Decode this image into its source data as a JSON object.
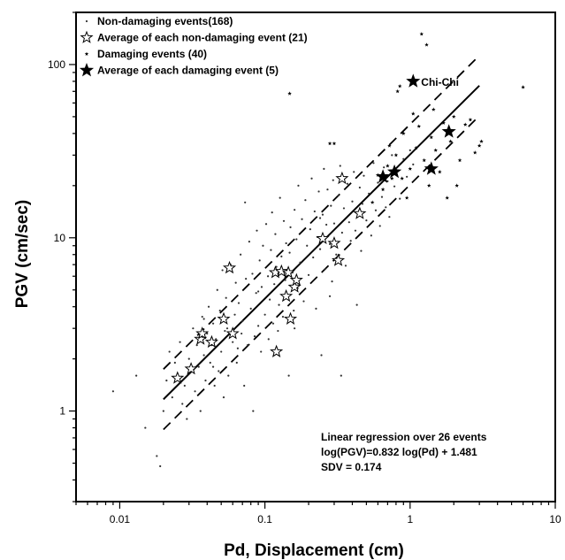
{
  "chart_data": {
    "type": "scatter",
    "xscale": "log",
    "yscale": "log",
    "xlim": [
      0.005,
      10
    ],
    "ylim": [
      0.3,
      200
    ],
    "xlabel": "Pd, Displacement (cm)",
    "ylabel": "PGV (cm/sec)",
    "x_ticks": [
      {
        "value": 0.01,
        "label": "0.01"
      },
      {
        "value": 0.1,
        "label": "0.1"
      },
      {
        "value": 1,
        "label": "1"
      },
      {
        "value": 10,
        "label": "10"
      }
    ],
    "y_ticks": [
      {
        "value": 1,
        "label": "1"
      },
      {
        "value": 10,
        "label": "10"
      },
      {
        "value": 100,
        "label": "100"
      }
    ],
    "grid": false,
    "legend_position": "top-left",
    "legend": [
      {
        "marker": "dot",
        "label": "Non-damaging events(168)"
      },
      {
        "marker": "open-star",
        "label": "Average of each non-damaging event (21)"
      },
      {
        "marker": "small-star",
        "label": "Damaging events (40)"
      },
      {
        "marker": "filled-star",
        "label": "Average of each damaging event (5)"
      }
    ],
    "regression": {
      "slope": 0.832,
      "intercept": 1.481,
      "sdv": 0.174,
      "x_range": [
        0.02,
        3
      ],
      "band_multiplier": 1
    },
    "annotation_lines": [
      "Linear regression over 26 events",
      "log(PGV)=0.832 log(Pd) + 1.481",
      "SDV = 0.174"
    ],
    "point_label": {
      "text": "Chi-Chi",
      "x": 1.05,
      "y": 80
    },
    "series": [
      {
        "name": "Non-damaging events(168)",
        "marker": "dot",
        "points": [
          [
            0.009,
            1.3
          ],
          [
            0.013,
            1.6
          ],
          [
            0.015,
            0.8
          ],
          [
            0.018,
            0.55
          ],
          [
            0.019,
            0.48
          ],
          [
            0.02,
            1.0
          ],
          [
            0.021,
            1.5
          ],
          [
            0.022,
            2.2
          ],
          [
            0.023,
            1.2
          ],
          [
            0.024,
            1.9
          ],
          [
            0.025,
            1.6
          ],
          [
            0.026,
            2.5
          ],
          [
            0.027,
            1.1
          ],
          [
            0.028,
            1.4
          ],
          [
            0.029,
            0.9
          ],
          [
            0.03,
            2.0
          ],
          [
            0.031,
            1.7
          ],
          [
            0.032,
            3.0
          ],
          [
            0.033,
            1.3
          ],
          [
            0.034,
            2.4
          ],
          [
            0.035,
            1.8
          ],
          [
            0.036,
            1.0
          ],
          [
            0.037,
            3.5
          ],
          [
            0.038,
            2.1
          ],
          [
            0.039,
            1.5
          ],
          [
            0.04,
            2.8
          ],
          [
            0.041,
            4.0
          ],
          [
            0.042,
            1.9
          ],
          [
            0.043,
            2.4
          ],
          [
            0.044,
            3.2
          ],
          [
            0.045,
            1.4
          ],
          [
            0.046,
            2.6
          ],
          [
            0.047,
            5.0
          ],
          [
            0.048,
            1.7
          ],
          [
            0.049,
            3.8
          ],
          [
            0.05,
            2.2
          ],
          [
            0.051,
            6.5
          ],
          [
            0.052,
            1.2
          ],
          [
            0.053,
            2.9
          ],
          [
            0.054,
            4.5
          ],
          [
            0.055,
            3.0
          ],
          [
            0.056,
            1.6
          ],
          [
            0.058,
            7.0
          ],
          [
            0.06,
            2.5
          ],
          [
            0.062,
            3.6
          ],
          [
            0.063,
            5.5
          ],
          [
            0.064,
            1.9
          ],
          [
            0.066,
            4.2
          ],
          [
            0.068,
            8.0
          ],
          [
            0.069,
            2.8
          ],
          [
            0.07,
            3.3
          ],
          [
            0.072,
            1.4
          ],
          [
            0.073,
            16.0
          ],
          [
            0.074,
            5.8
          ],
          [
            0.076,
            2.4
          ],
          [
            0.078,
            9.5
          ],
          [
            0.08,
            3.9
          ],
          [
            0.082,
            6.2
          ],
          [
            0.083,
            1.0
          ],
          [
            0.085,
            2.7
          ],
          [
            0.087,
            4.8
          ],
          [
            0.088,
            11.0
          ],
          [
            0.09,
            3.1
          ],
          [
            0.092,
            7.4
          ],
          [
            0.094,
            2.2
          ],
          [
            0.095,
            5.2
          ],
          [
            0.097,
            9.0
          ],
          [
            0.1,
            3.6
          ],
          [
            0.102,
            12.0
          ],
          [
            0.105,
            6.0
          ],
          [
            0.106,
            2.6
          ],
          [
            0.108,
            4.4
          ],
          [
            0.11,
            8.5
          ],
          [
            0.112,
            14.0
          ],
          [
            0.114,
            3.2
          ],
          [
            0.116,
            5.4
          ],
          [
            0.118,
            10.5
          ],
          [
            0.12,
            6.8
          ],
          [
            0.123,
            2.9
          ],
          [
            0.125,
            4.1
          ],
          [
            0.127,
            17.0
          ],
          [
            0.13,
            7.8
          ],
          [
            0.133,
            3.5
          ],
          [
            0.135,
            12.5
          ],
          [
            0.138,
            5.7
          ],
          [
            0.14,
            9.3
          ],
          [
            0.143,
            4.6
          ],
          [
            0.146,
            1.6
          ],
          [
            0.148,
            8.2
          ],
          [
            0.15,
            11.5
          ],
          [
            0.155,
            6.3
          ],
          [
            0.158,
            3.8
          ],
          [
            0.16,
            14.5
          ],
          [
            0.165,
            9.8
          ],
          [
            0.168,
            5.1
          ],
          [
            0.17,
            20.0
          ],
          [
            0.175,
            7.2
          ],
          [
            0.18,
            12.8
          ],
          [
            0.185,
            4.3
          ],
          [
            0.19,
            16.5
          ],
          [
            0.195,
            9.0
          ],
          [
            0.2,
            6.1
          ],
          [
            0.205,
            11.2
          ],
          [
            0.21,
            22.0
          ],
          [
            0.215,
            7.7
          ],
          [
            0.22,
            14.2
          ],
          [
            0.225,
            3.9
          ],
          [
            0.23,
            10.1
          ],
          [
            0.235,
            18.5
          ],
          [
            0.24,
            8.6
          ],
          [
            0.245,
            2.1
          ],
          [
            0.25,
            13.6
          ],
          [
            0.255,
            25.0
          ],
          [
            0.26,
            6.6
          ],
          [
            0.265,
            11.9
          ],
          [
            0.27,
            19.0
          ],
          [
            0.28,
            9.2
          ],
          [
            0.285,
            15.3
          ],
          [
            0.29,
            5.6
          ],
          [
            0.295,
            21.5
          ],
          [
            0.3,
            12.1
          ],
          [
            0.31,
            8.0
          ],
          [
            0.32,
            17.5
          ],
          [
            0.33,
            26.0
          ],
          [
            0.335,
            1.6
          ],
          [
            0.34,
            10.7
          ],
          [
            0.35,
            14.8
          ],
          [
            0.36,
            6.9
          ],
          [
            0.37,
            20.5
          ],
          [
            0.38,
            12.3
          ],
          [
            0.39,
            9.6
          ],
          [
            0.4,
            16.2
          ],
          [
            0.41,
            24.0
          ],
          [
            0.42,
            11.0
          ],
          [
            0.43,
            4.1
          ],
          [
            0.44,
            13.9
          ],
          [
            0.45,
            19.5
          ],
          [
            0.46,
            8.4
          ],
          [
            0.47,
            15.7
          ],
          [
            0.48,
            22.8
          ],
          [
            0.5,
            12.6
          ],
          [
            0.52,
            18.0
          ],
          [
            0.54,
            10.3
          ],
          [
            0.56,
            27.0
          ],
          [
            0.58,
            14.4
          ],
          [
            0.6,
            20.8
          ],
          [
            0.62,
            11.7
          ],
          [
            0.64,
            17.2
          ],
          [
            0.66,
            25.5
          ],
          [
            0.68,
            15.0
          ],
          [
            0.7,
            21.2
          ],
          [
            0.72,
            13.2
          ],
          [
            0.75,
            30.0
          ],
          [
            0.78,
            19.8
          ],
          [
            0.8,
            24.8
          ],
          [
            0.85,
            16.8
          ],
          [
            0.9,
            28.5
          ],
          [
            0.95,
            22.5
          ],
          [
            1.0,
            32.0
          ],
          [
            1.05,
            26.5
          ],
          [
            0.12,
            6.2
          ],
          [
            0.09,
            4.9
          ],
          [
            0.065,
            2.3
          ],
          [
            0.044,
            1.8
          ],
          [
            0.038,
            3.4
          ],
          [
            0.28,
            4.6
          ],
          [
            0.16,
            3.0
          ],
          [
            0.24,
            13.0
          ]
        ]
      },
      {
        "name": "Average of each non-damaging event (21)",
        "marker": "open-star",
        "points": [
          [
            0.025,
            1.55
          ],
          [
            0.031,
            1.75
          ],
          [
            0.036,
            2.6
          ],
          [
            0.037,
            2.8
          ],
          [
            0.043,
            2.5
          ],
          [
            0.052,
            3.4
          ],
          [
            0.057,
            6.7
          ],
          [
            0.06,
            2.8
          ],
          [
            0.118,
            6.3
          ],
          [
            0.12,
            2.2
          ],
          [
            0.13,
            6.4
          ],
          [
            0.14,
            4.6
          ],
          [
            0.145,
            6.3
          ],
          [
            0.15,
            3.4
          ],
          [
            0.16,
            5.2
          ],
          [
            0.165,
            5.7
          ],
          [
            0.25,
            9.9
          ],
          [
            0.3,
            9.3
          ],
          [
            0.32,
            7.4
          ],
          [
            0.34,
            22.0
          ],
          [
            0.45,
            13.8
          ]
        ]
      },
      {
        "name": "Damaging events (40)",
        "marker": "small-star",
        "points": [
          [
            0.148,
            68.0
          ],
          [
            0.28,
            35.0
          ],
          [
            0.3,
            35.0
          ],
          [
            0.55,
            16.0
          ],
          [
            0.6,
            23.0
          ],
          [
            0.65,
            19.0
          ],
          [
            0.7,
            26.0
          ],
          [
            0.72,
            34.0
          ],
          [
            0.75,
            22.0
          ],
          [
            0.8,
            30.0
          ],
          [
            0.82,
            70.0
          ],
          [
            0.85,
            75.0
          ],
          [
            0.88,
            22.0
          ],
          [
            0.9,
            40.0
          ],
          [
            0.95,
            17.0
          ],
          [
            1.0,
            25.0
          ],
          [
            1.05,
            52.0
          ],
          [
            1.1,
            33.0
          ],
          [
            1.15,
            44.0
          ],
          [
            1.2,
            150.0
          ],
          [
            1.25,
            28.0
          ],
          [
            1.3,
            130.0
          ],
          [
            1.35,
            20.0
          ],
          [
            1.4,
            38.0
          ],
          [
            1.45,
            55.0
          ],
          [
            1.5,
            32.0
          ],
          [
            1.6,
            24.0
          ],
          [
            1.7,
            46.0
          ],
          [
            1.8,
            17.0
          ],
          [
            1.85,
            42.0
          ],
          [
            1.9,
            36.0
          ],
          [
            2.0,
            50.0
          ],
          [
            2.1,
            20.0
          ],
          [
            2.2,
            28.0
          ],
          [
            2.4,
            45.0
          ],
          [
            2.6,
            48.0
          ],
          [
            2.8,
            31.0
          ],
          [
            3.0,
            34.0
          ],
          [
            3.1,
            36.0
          ],
          [
            6.0,
            74.0
          ]
        ]
      },
      {
        "name": "Average of each damaging event (5)",
        "marker": "filled-star",
        "points": [
          [
            0.65,
            22.5
          ],
          [
            0.78,
            24.0
          ],
          [
            1.05,
            80.0
          ],
          [
            1.4,
            25.0
          ],
          [
            1.85,
            41.0
          ]
        ]
      }
    ]
  }
}
